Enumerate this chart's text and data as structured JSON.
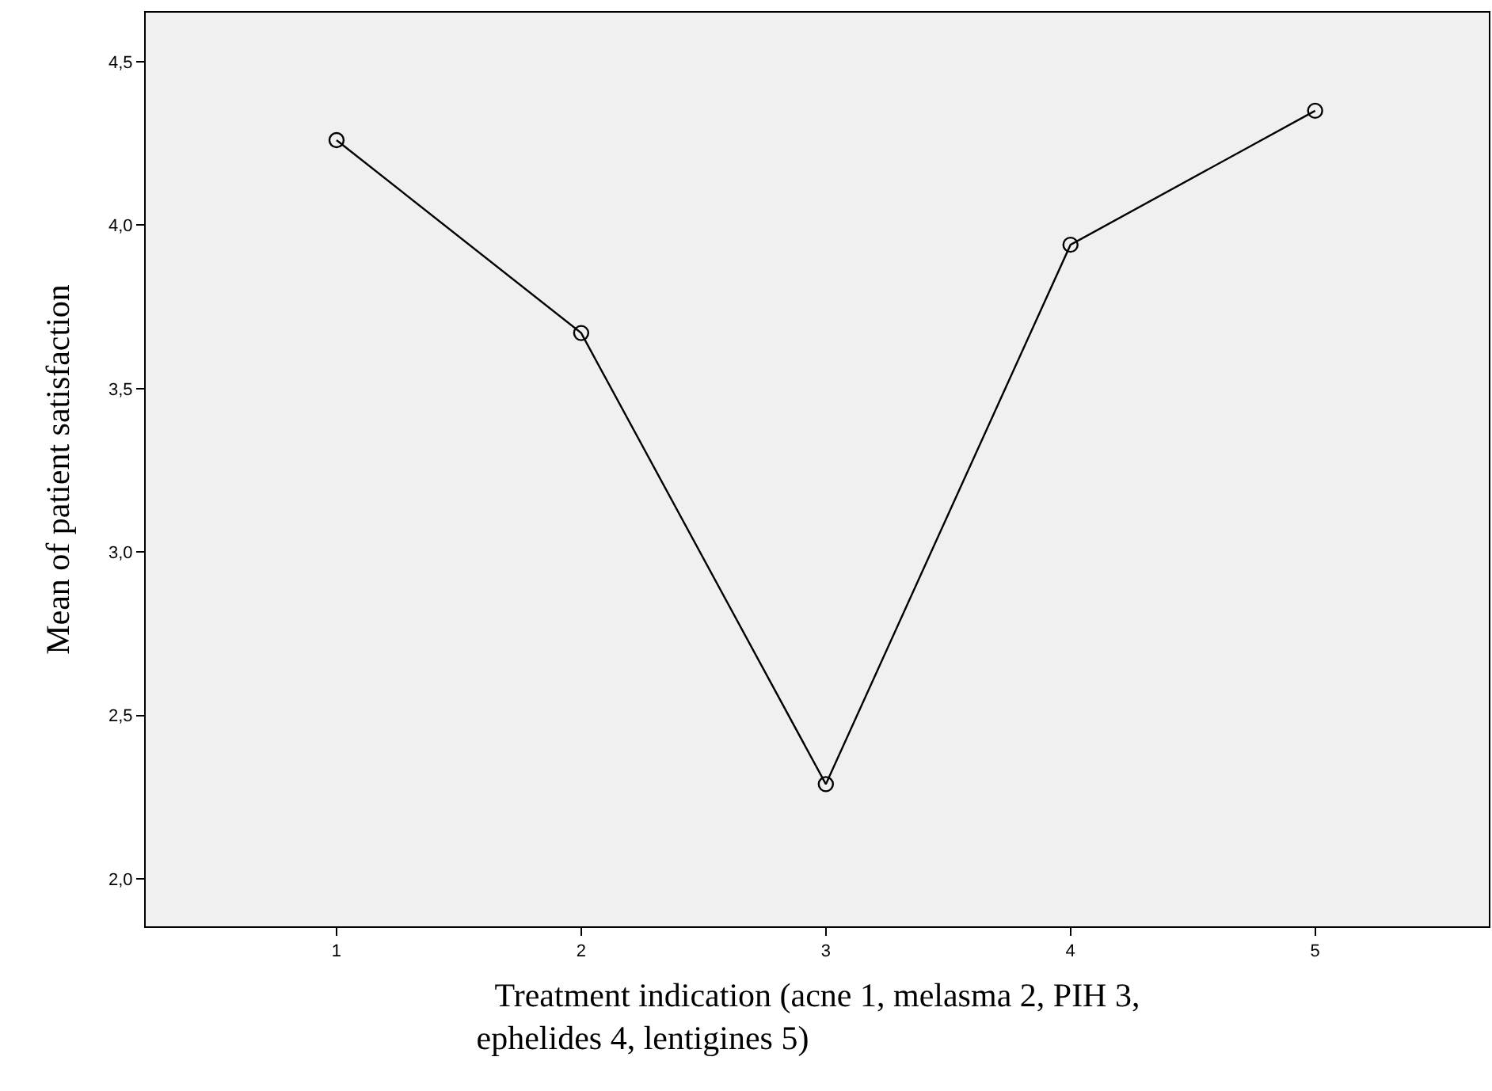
{
  "chart_data": {
    "type": "line",
    "xlabel": "Treatment indication (acne 1, melasma 2, PIH 3, ephelides 4, lentigines 5)",
    "ylabel": "Mean of patient satisfaction",
    "x": [
      1,
      2,
      3,
      4,
      5
    ],
    "series": [
      {
        "color": "#000000",
        "values": [
          4.26,
          3.67,
          2.29,
          3.94,
          4.35
        ]
      }
    ],
    "xlim": [
      0.22,
      5.71
    ],
    "xticks": [
      1,
      2,
      3,
      4,
      5
    ],
    "ylim": [
      1.855,
      4.65
    ],
    "yticks": [
      {
        "value": 2.0,
        "label": "2,0"
      },
      {
        "value": 2.5,
        "label": "2,5"
      },
      {
        "value": 3.0,
        "label": "3,0"
      },
      {
        "value": 3.5,
        "label": "3,5"
      },
      {
        "value": 4.0,
        "label": "4,0"
      },
      {
        "value": 4.5,
        "label": "4,5"
      }
    ],
    "grid": false,
    "marker": "circle",
    "line_style": "solid"
  }
}
